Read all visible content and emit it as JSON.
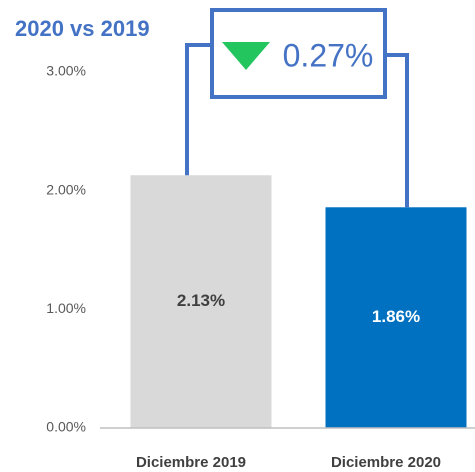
{
  "chart_data": {
    "type": "bar",
    "title": "2020 vs 2019",
    "categories": [
      "Diciembre 2019",
      "Diciembre 2020"
    ],
    "values": [
      2.13,
      1.86
    ],
    "value_labels": [
      "2.13%",
      "1.86%"
    ],
    "colors": [
      "#d9d9d9",
      "#0070c0"
    ],
    "ylim": [
      0,
      3
    ],
    "yticks": [
      {
        "value": 0,
        "label": "0.00%"
      },
      {
        "value": 1,
        "label": "1.00%"
      },
      {
        "value": 2,
        "label": "2.00%"
      },
      {
        "value": 3,
        "label": "3.00%"
      }
    ],
    "annotation": {
      "text": "0.27%",
      "direction": "down",
      "color": "#22c55e"
    }
  }
}
